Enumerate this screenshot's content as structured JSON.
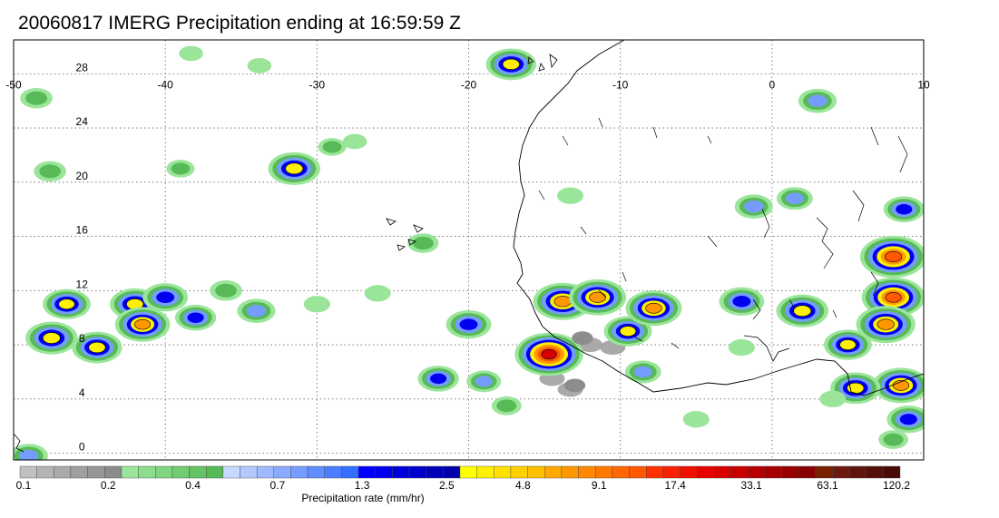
{
  "title": "20060817 IMERG Precipitation ending at 16:59:59 Z",
  "map": {
    "lon_range": [
      -50,
      10
    ],
    "lat_range": [
      -0.5,
      30.5
    ],
    "lon_ticks": [
      "-50",
      "-40",
      "-30",
      "-20",
      "-10",
      "0",
      "10"
    ],
    "lon_values": [
      -50,
      -40,
      -30,
      -20,
      -10,
      0,
      10
    ],
    "lat_ticks": [
      "28",
      "24",
      "20",
      "16",
      "12",
      "8",
      "4",
      "0"
    ],
    "lat_values": [
      28,
      24,
      20,
      16,
      12,
      8,
      4,
      0
    ],
    "grid": "dotted",
    "coastline_color": "#000000",
    "precip_cells": [
      {
        "lon": -38.3,
        "lat": 29.5,
        "rate": 0.3
      },
      {
        "lon": -33.8,
        "lat": 28.6,
        "rate": 0.3
      },
      {
        "lon": -17.2,
        "lat": 28.7,
        "rate": 5
      },
      {
        "lon": -48.5,
        "lat": 26.2,
        "rate": 0.8
      },
      {
        "lon": -39.0,
        "lat": 21.0,
        "rate": 0.5
      },
      {
        "lon": -47.6,
        "lat": 20.8,
        "rate": 0.8
      },
      {
        "lon": -31.5,
        "lat": 21.0,
        "rate": 6
      },
      {
        "lon": -29.0,
        "lat": 22.6,
        "rate": 0.5
      },
      {
        "lon": -27.5,
        "lat": 23.0,
        "rate": 0.3
      },
      {
        "lon": -13.3,
        "lat": 19.0,
        "rate": 0.4
      },
      {
        "lon": 3.0,
        "lat": 26.0,
        "rate": 1.5
      },
      {
        "lon": 1.5,
        "lat": 18.8,
        "rate": 1.2
      },
      {
        "lon": -1.2,
        "lat": 18.2,
        "rate": 1.5
      },
      {
        "lon": 8.7,
        "lat": 18.0,
        "rate": 2.0
      },
      {
        "lon": -23.0,
        "lat": 15.5,
        "rate": 0.7
      },
      {
        "lon": -46.5,
        "lat": 11.0,
        "rate": 4
      },
      {
        "lon": -42.0,
        "lat": 11.0,
        "rate": 5
      },
      {
        "lon": -40.0,
        "lat": 11.5,
        "rate": 3
      },
      {
        "lon": -47.5,
        "lat": 8.5,
        "rate": 6
      },
      {
        "lon": -44.5,
        "lat": 7.8,
        "rate": 5
      },
      {
        "lon": -41.5,
        "lat": 9.5,
        "rate": 8
      },
      {
        "lon": -38.0,
        "lat": 10.0,
        "rate": 2
      },
      {
        "lon": -36.0,
        "lat": 12.0,
        "rate": 0.8
      },
      {
        "lon": -34.0,
        "lat": 10.5,
        "rate": 1.5
      },
      {
        "lon": -30.0,
        "lat": 11.0,
        "rate": 0.4
      },
      {
        "lon": -26.0,
        "lat": 11.8,
        "rate": 0.4
      },
      {
        "lon": -20.0,
        "lat": 9.5,
        "rate": 3
      },
      {
        "lon": -22.0,
        "lat": 5.5,
        "rate": 2.0
      },
      {
        "lon": -19.0,
        "lat": 5.3,
        "rate": 1.0
      },
      {
        "lon": -17.5,
        "lat": 3.5,
        "rate": 0.6
      },
      {
        "lon": -14.7,
        "lat": 7.3,
        "rate": 30
      },
      {
        "lon": -13.8,
        "lat": 11.2,
        "rate": 12
      },
      {
        "lon": -11.5,
        "lat": 11.5,
        "rate": 10
      },
      {
        "lon": -12.5,
        "lat": 8.5,
        "rate": 0.2
      },
      {
        "lon": -13.0,
        "lat": 5.0,
        "rate": 0.2
      },
      {
        "lon": -9.5,
        "lat": 9.0,
        "rate": 4
      },
      {
        "lon": -7.8,
        "lat": 10.7,
        "rate": 9
      },
      {
        "lon": -8.5,
        "lat": 6.0,
        "rate": 1.2
      },
      {
        "lon": -2.0,
        "lat": 11.2,
        "rate": 3
      },
      {
        "lon": 2.0,
        "lat": 10.5,
        "rate": 6
      },
      {
        "lon": 8.0,
        "lat": 14.5,
        "rate": 25
      },
      {
        "lon": 8.0,
        "lat": 11.5,
        "rate": 18
      },
      {
        "lon": 7.5,
        "lat": 9.5,
        "rate": 12
      },
      {
        "lon": 5.0,
        "lat": 8.0,
        "rate": 4
      },
      {
        "lon": 8.5,
        "lat": 5.0,
        "rate": 9
      },
      {
        "lon": 5.5,
        "lat": 4.8,
        "rate": 5
      },
      {
        "lon": 9.0,
        "lat": 2.5,
        "rate": 2.5
      },
      {
        "lon": 4.0,
        "lat": 4.0,
        "rate": 0.4
      },
      {
        "lon": -5.0,
        "lat": 2.5,
        "rate": 0.4
      },
      {
        "lon": -2.0,
        "lat": 7.8,
        "rate": 0.4
      },
      {
        "lon": -49.0,
        "lat": -0.2,
        "rate": 1.5
      },
      {
        "lon": 8.0,
        "lat": 1.0,
        "rate": 0.6
      }
    ],
    "gray_cells": [
      {
        "lon": -14.5,
        "lat": 5.5
      },
      {
        "lon": -12.0,
        "lat": 8.0
      },
      {
        "lon": -10.5,
        "lat": 7.8
      },
      {
        "lon": -13.3,
        "lat": 4.7
      }
    ]
  },
  "legend": {
    "unit_label": "Precipitation rate (mm/hr)",
    "tick_labels": [
      "0.1",
      "0.2",
      "0.4",
      "0.7",
      "1.3",
      "2.5",
      "4.8",
      "9.1",
      "17.4",
      "33.1",
      "63.1",
      "120.2"
    ],
    "colors": [
      "#c0c0c0",
      "#b4b4b4",
      "#aaaaaa",
      "#a0a0a0",
      "#969696",
      "#8c8c8c",
      "#9be59b",
      "#8ddd8d",
      "#80d580",
      "#72cc72",
      "#65c365",
      "#57ba57",
      "#c8d8ff",
      "#b4c8ff",
      "#9fbaff",
      "#8aabff",
      "#759cff",
      "#608dff",
      "#4b7eff",
      "#366fff",
      "#0000ff",
      "#0000ee",
      "#0000dd",
      "#0000cc",
      "#0000bb",
      "#0000aa",
      "#ffff00",
      "#ffef00",
      "#ffe000",
      "#ffd000",
      "#ffc000",
      "#ffa800",
      "#ff9800",
      "#ff8800",
      "#ff7800",
      "#ff6800",
      "#ff5800",
      "#ff3000",
      "#f82000",
      "#f01000",
      "#e80000",
      "#d80000",
      "#c80000",
      "#b80000",
      "#a80000",
      "#980000",
      "#880000",
      "#782000",
      "#6c1a10",
      "#60140c",
      "#541008",
      "#480c08"
    ]
  }
}
